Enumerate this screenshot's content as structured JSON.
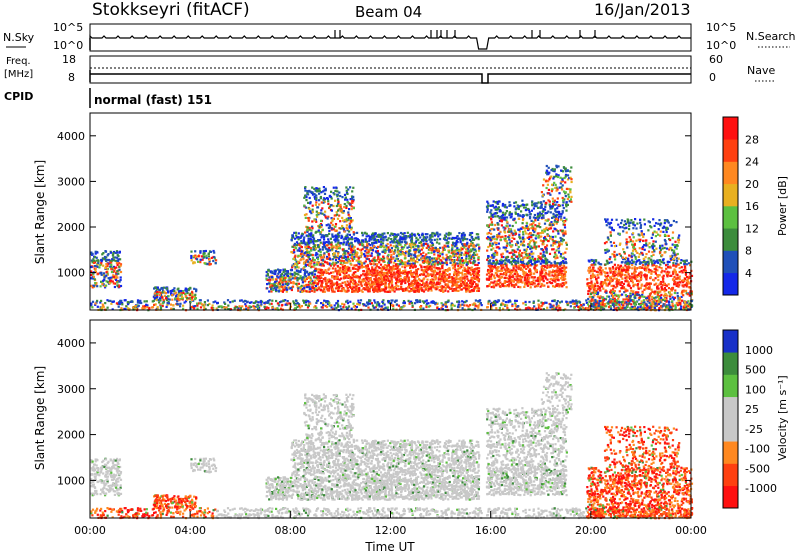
{
  "header": {
    "station": "Stokkseyri (fitACF)",
    "beam": "Beam 04",
    "date": "16/Jan/2013"
  },
  "top_strip": {
    "left_label": "N.Sky",
    "right_label": "N.Search",
    "left_ticks": [
      "10^5",
      "10^0"
    ],
    "right_ticks": [
      "10^5",
      "10^0"
    ]
  },
  "freq_strip": {
    "left_label_line1": "Freq.",
    "left_label_line2": "[MHz]",
    "left_ticks": [
      "18",
      "8"
    ],
    "right_label": "Nave",
    "right_ticks": [
      "60",
      "0"
    ]
  },
  "cpid": {
    "label": "CPID",
    "value": "normal (fast) 151"
  },
  "colors": {
    "power": [
      "#1428e8",
      "#2050b8",
      "#3c8c3c",
      "#5cc040",
      "#e8b020",
      "#ff8820",
      "#ff4010",
      "#ff1010"
    ],
    "velocity": [
      "#1830c8",
      "#3c8c3c",
      "#5cc040",
      "#c8c8c8",
      "#c8c8c8",
      "#ff8820",
      "#ff4010",
      "#ff1010"
    ]
  },
  "chart_data": [
    {
      "type": "heatmap",
      "panel": "power",
      "ylabel": "Slant Range [km]",
      "yticks": [
        "1000",
        "2000",
        "3000",
        "4000"
      ],
      "ylim": [
        180,
        4500
      ],
      "xlim": [
        "00:00",
        "24:00"
      ],
      "colorbar_label": "Power [dB]",
      "colorbar_ticks": [
        "4",
        "8",
        "12",
        "16",
        "20",
        "24",
        "28"
      ],
      "colorbar_range": [
        0,
        30
      ]
    },
    {
      "type": "heatmap",
      "panel": "velocity",
      "ylabel": "Slant Range [km]",
      "yticks": [
        "1000",
        "2000",
        "3000",
        "4000"
      ],
      "ylim": [
        180,
        4500
      ],
      "xlim": [
        "00:00",
        "24:00"
      ],
      "xlabel": "Time UT",
      "xticks": [
        "00:00",
        "04:00",
        "08:00",
        "12:00",
        "16:00",
        "20:00",
        "00:00"
      ],
      "colorbar_label": "Velocity [m s⁻¹]",
      "colorbar_ticks": [
        "1000",
        "500",
        "100",
        "25",
        "-25",
        "-100",
        "-500",
        "-1000"
      ]
    }
  ]
}
